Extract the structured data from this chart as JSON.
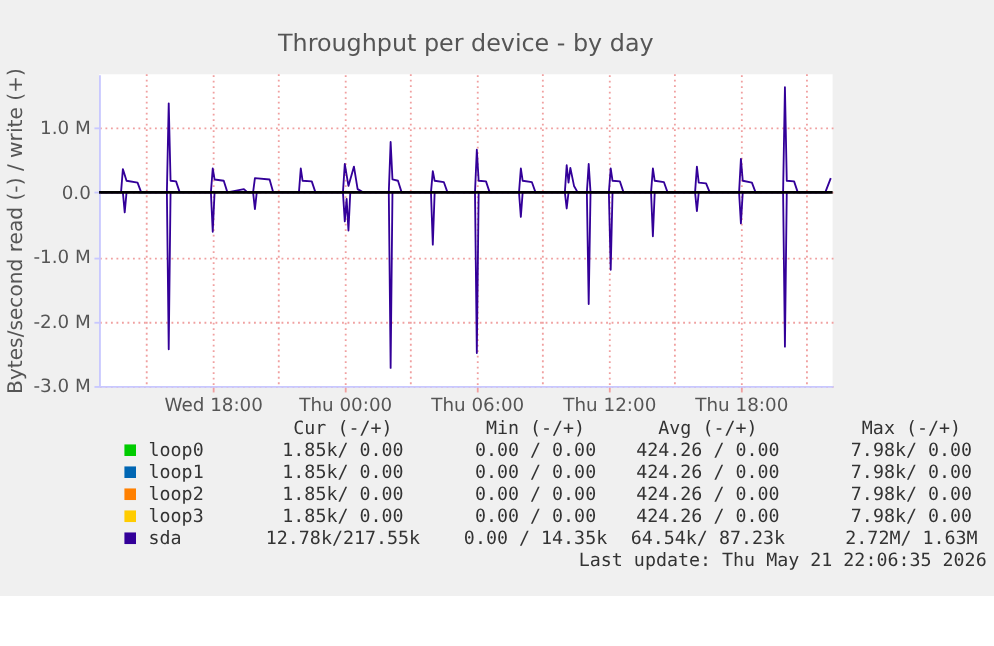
{
  "chart_data": {
    "type": "line",
    "title": "Throughput per device - by day",
    "ylabel": "Bytes/second read (-) / write (+)",
    "xlim": [
      "2026-05-20T12:50",
      "2026-05-21T22:10"
    ],
    "xticks": [
      {
        "value": "2026-05-20T15:00",
        "label": null
      },
      {
        "value": "2026-05-20T18:00",
        "label": "Wed 18:00"
      },
      {
        "value": "2026-05-20T21:00",
        "label": null
      },
      {
        "value": "2026-05-21T00:00",
        "label": "Thu 00:00"
      },
      {
        "value": "2026-05-21T03:00",
        "label": null
      },
      {
        "value": "2026-05-21T06:00",
        "label": "Thu 06:00"
      },
      {
        "value": "2026-05-21T09:00",
        "label": null
      },
      {
        "value": "2026-05-21T12:00",
        "label": "Thu 12:00"
      },
      {
        "value": "2026-05-21T15:00",
        "label": null
      },
      {
        "value": "2026-05-21T18:00",
        "label": "Thu 18:00"
      },
      {
        "value": "2026-05-21T21:00",
        "label": null
      }
    ],
    "ylim": [
      -3000000,
      1830000
    ],
    "yticks": [
      {
        "value": -3000000,
        "label": "-3.0 M"
      },
      {
        "value": -2000000,
        "label": "-2.0 M"
      },
      {
        "value": -1000000,
        "label": "-1.0 M"
      },
      {
        "value": 0,
        "label": "0.0"
      },
      {
        "value": 1000000,
        "label": "1.0 M"
      }
    ],
    "grid": true,
    "legend": "bottom",
    "ref_lines": [
      {
        "axis": "y",
        "value": 0,
        "color": "#000000"
      }
    ],
    "series": [
      {
        "name": "loop0",
        "color": "#00cc00"
      },
      {
        "name": "loop1",
        "color": "#0066b3"
      },
      {
        "name": "loop2",
        "color": "#ff8000"
      },
      {
        "name": "loop3",
        "color": "#ffcc00"
      },
      {
        "name": "sda",
        "color": "#330099",
        "x": [
          "2026-05-20T12:55",
          "2026-05-20T13:50",
          "2026-05-20T13:55",
          "2026-05-20T14:05",
          "2026-05-20T14:35",
          "2026-05-20T14:45",
          "2026-05-20T15:55",
          "2026-05-20T16:00",
          "2026-05-20T16:05",
          "2026-05-20T16:20",
          "2026-05-20T16:30",
          "2026-05-20T17:55",
          "2026-05-20T18:00",
          "2026-05-20T18:05",
          "2026-05-20T18:30",
          "2026-05-20T18:40",
          "2026-05-20T19:25",
          "2026-05-20T19:35",
          "2026-05-20T19:50",
          "2026-05-20T19:55",
          "2026-05-20T20:35",
          "2026-05-20T20:45",
          "2026-05-20T21:55",
          "2026-05-20T22:00",
          "2026-05-20T22:05",
          "2026-05-20T22:30",
          "2026-05-20T22:40",
          "2026-05-20T23:55",
          "2026-05-21T00:00",
          "2026-05-21T00:10",
          "2026-05-21T00:25",
          "2026-05-21T00:35",
          "2026-05-21T00:50",
          "2026-05-21T02:00",
          "2026-05-21T02:05",
          "2026-05-21T02:10",
          "2026-05-21T02:25",
          "2026-05-21T02:35",
          "2026-05-21T03:55",
          "2026-05-21T04:00",
          "2026-05-21T04:05",
          "2026-05-21T04:30",
          "2026-05-21T04:40",
          "2026-05-21T05:55",
          "2026-05-21T06:00",
          "2026-05-21T06:05",
          "2026-05-21T06:25",
          "2026-05-21T06:35",
          "2026-05-21T07:55",
          "2026-05-21T08:00",
          "2026-05-21T08:05",
          "2026-05-21T08:30",
          "2026-05-21T08:40",
          "2026-05-21T10:00",
          "2026-05-21T10:05",
          "2026-05-21T10:10",
          "2026-05-21T10:15",
          "2026-05-21T10:25",
          "2026-05-21T10:35",
          "2026-05-21T11:00",
          "2026-05-21T11:05",
          "2026-05-21T11:10",
          "2026-05-21T12:00",
          "2026-05-21T12:05",
          "2026-05-21T12:10",
          "2026-05-21T12:30",
          "2026-05-21T12:40",
          "2026-05-21T13:55",
          "2026-05-21T14:00",
          "2026-05-21T14:05",
          "2026-05-21T14:30",
          "2026-05-21T14:40",
          "2026-05-21T15:55",
          "2026-05-21T16:00",
          "2026-05-21T16:05",
          "2026-05-21T16:25",
          "2026-05-21T16:35",
          "2026-05-21T17:55",
          "2026-05-21T18:00",
          "2026-05-21T18:05",
          "2026-05-21T18:30",
          "2026-05-21T18:40",
          "2026-05-21T19:55",
          "2026-05-21T20:00",
          "2026-05-21T20:05",
          "2026-05-21T20:25",
          "2026-05-21T20:35",
          "2026-05-21T21:50",
          "2026-05-21T22:05"
        ],
        "values": [
          0,
          0,
          360000,
          180000,
          150000,
          0,
          0,
          1380000,
          180000,
          170000,
          0,
          0,
          370000,
          200000,
          180000,
          0,
          50000,
          0,
          0,
          220000,
          200000,
          0,
          0,
          370000,
          180000,
          170000,
          0,
          0,
          440000,
          100000,
          400000,
          50000,
          0,
          0,
          780000,
          200000,
          180000,
          0,
          0,
          330000,
          180000,
          160000,
          0,
          0,
          660000,
          180000,
          170000,
          0,
          0,
          370000,
          180000,
          160000,
          0,
          0,
          420000,
          150000,
          380000,
          100000,
          0,
          0,
          440000,
          0,
          0,
          370000,
          180000,
          170000,
          0,
          0,
          370000,
          180000,
          160000,
          0,
          0,
          400000,
          150000,
          140000,
          0,
          0,
          520000,
          180000,
          150000,
          0,
          0,
          1630000,
          180000,
          170000,
          0,
          0,
          220000
        ]
      },
      {
        "color": "#330099",
        "x": [
          "2026-05-20T12:55",
          "2026-05-20T13:55",
          "2026-05-20T14:00",
          "2026-05-20T14:05",
          "2026-05-20T15:55",
          "2026-05-20T16:00",
          "2026-05-20T16:05",
          "2026-05-20T17:55",
          "2026-05-20T18:00",
          "2026-05-20T18:05",
          "2026-05-20T19:50",
          "2026-05-20T19:55",
          "2026-05-20T20:00",
          "2026-05-20T23:55",
          "2026-05-21T00:00",
          "2026-05-21T00:05",
          "2026-05-21T00:10",
          "2026-05-21T00:15",
          "2026-05-21T02:00",
          "2026-05-21T02:05",
          "2026-05-21T02:10",
          "2026-05-21T03:55",
          "2026-05-21T04:00",
          "2026-05-21T04:05",
          "2026-05-21T05:55",
          "2026-05-21T06:00",
          "2026-05-21T06:05",
          "2026-05-21T07:55",
          "2026-05-21T08:00",
          "2026-05-21T08:05",
          "2026-05-21T10:00",
          "2026-05-21T10:05",
          "2026-05-21T10:10",
          "2026-05-21T11:00",
          "2026-05-21T11:05",
          "2026-05-21T11:10",
          "2026-05-21T12:00",
          "2026-05-21T12:05",
          "2026-05-21T12:10",
          "2026-05-21T13:55",
          "2026-05-21T14:00",
          "2026-05-21T14:05",
          "2026-05-21T15:55",
          "2026-05-21T16:00",
          "2026-05-21T16:05",
          "2026-05-21T17:55",
          "2026-05-21T18:00",
          "2026-05-21T18:05",
          "2026-05-21T19:55",
          "2026-05-21T20:00",
          "2026-05-21T20:05",
          "2026-05-21T22:05"
        ],
        "values": [
          0,
          0,
          -310000,
          0,
          0,
          -2430000,
          0,
          0,
          -610000,
          0,
          0,
          -260000,
          0,
          0,
          -450000,
          -100000,
          -590000,
          0,
          0,
          -2720000,
          0,
          0,
          -810000,
          0,
          0,
          -2490000,
          0,
          0,
          -380000,
          0,
          0,
          -250000,
          0,
          0,
          -1730000,
          0,
          0,
          -1200000,
          0,
          0,
          -680000,
          0,
          0,
          -290000,
          0,
          0,
          -480000,
          0,
          0,
          -2390000,
          0,
          0
        ]
      }
    ],
    "annotations": [
      "Cur (-/+)",
      "Min (-/+)",
      "Avg (-/+)",
      "Max (-/+)",
      "1.85k/  0.00",
      "0.00 /  0.00",
      "424.26 /  0.00",
      "7.98k/  0.00",
      "1.85k/  0.00",
      "0.00 /  0.00",
      "424.26 /  0.00",
      "7.98k/  0.00",
      "1.85k/  0.00",
      "0.00 /  0.00",
      "424.26 /  0.00",
      "7.98k/  0.00",
      "1.85k/  0.00",
      "0.00 /  0.00",
      "424.26 /  0.00",
      "7.98k/  0.00",
      "12.78k/217.55k",
      "0.00 / 14.35k",
      "64.54k/ 87.23k",
      "2.72M/  1.63M",
      "Last update: Thu May 21 22:06:35 2026"
    ]
  }
}
